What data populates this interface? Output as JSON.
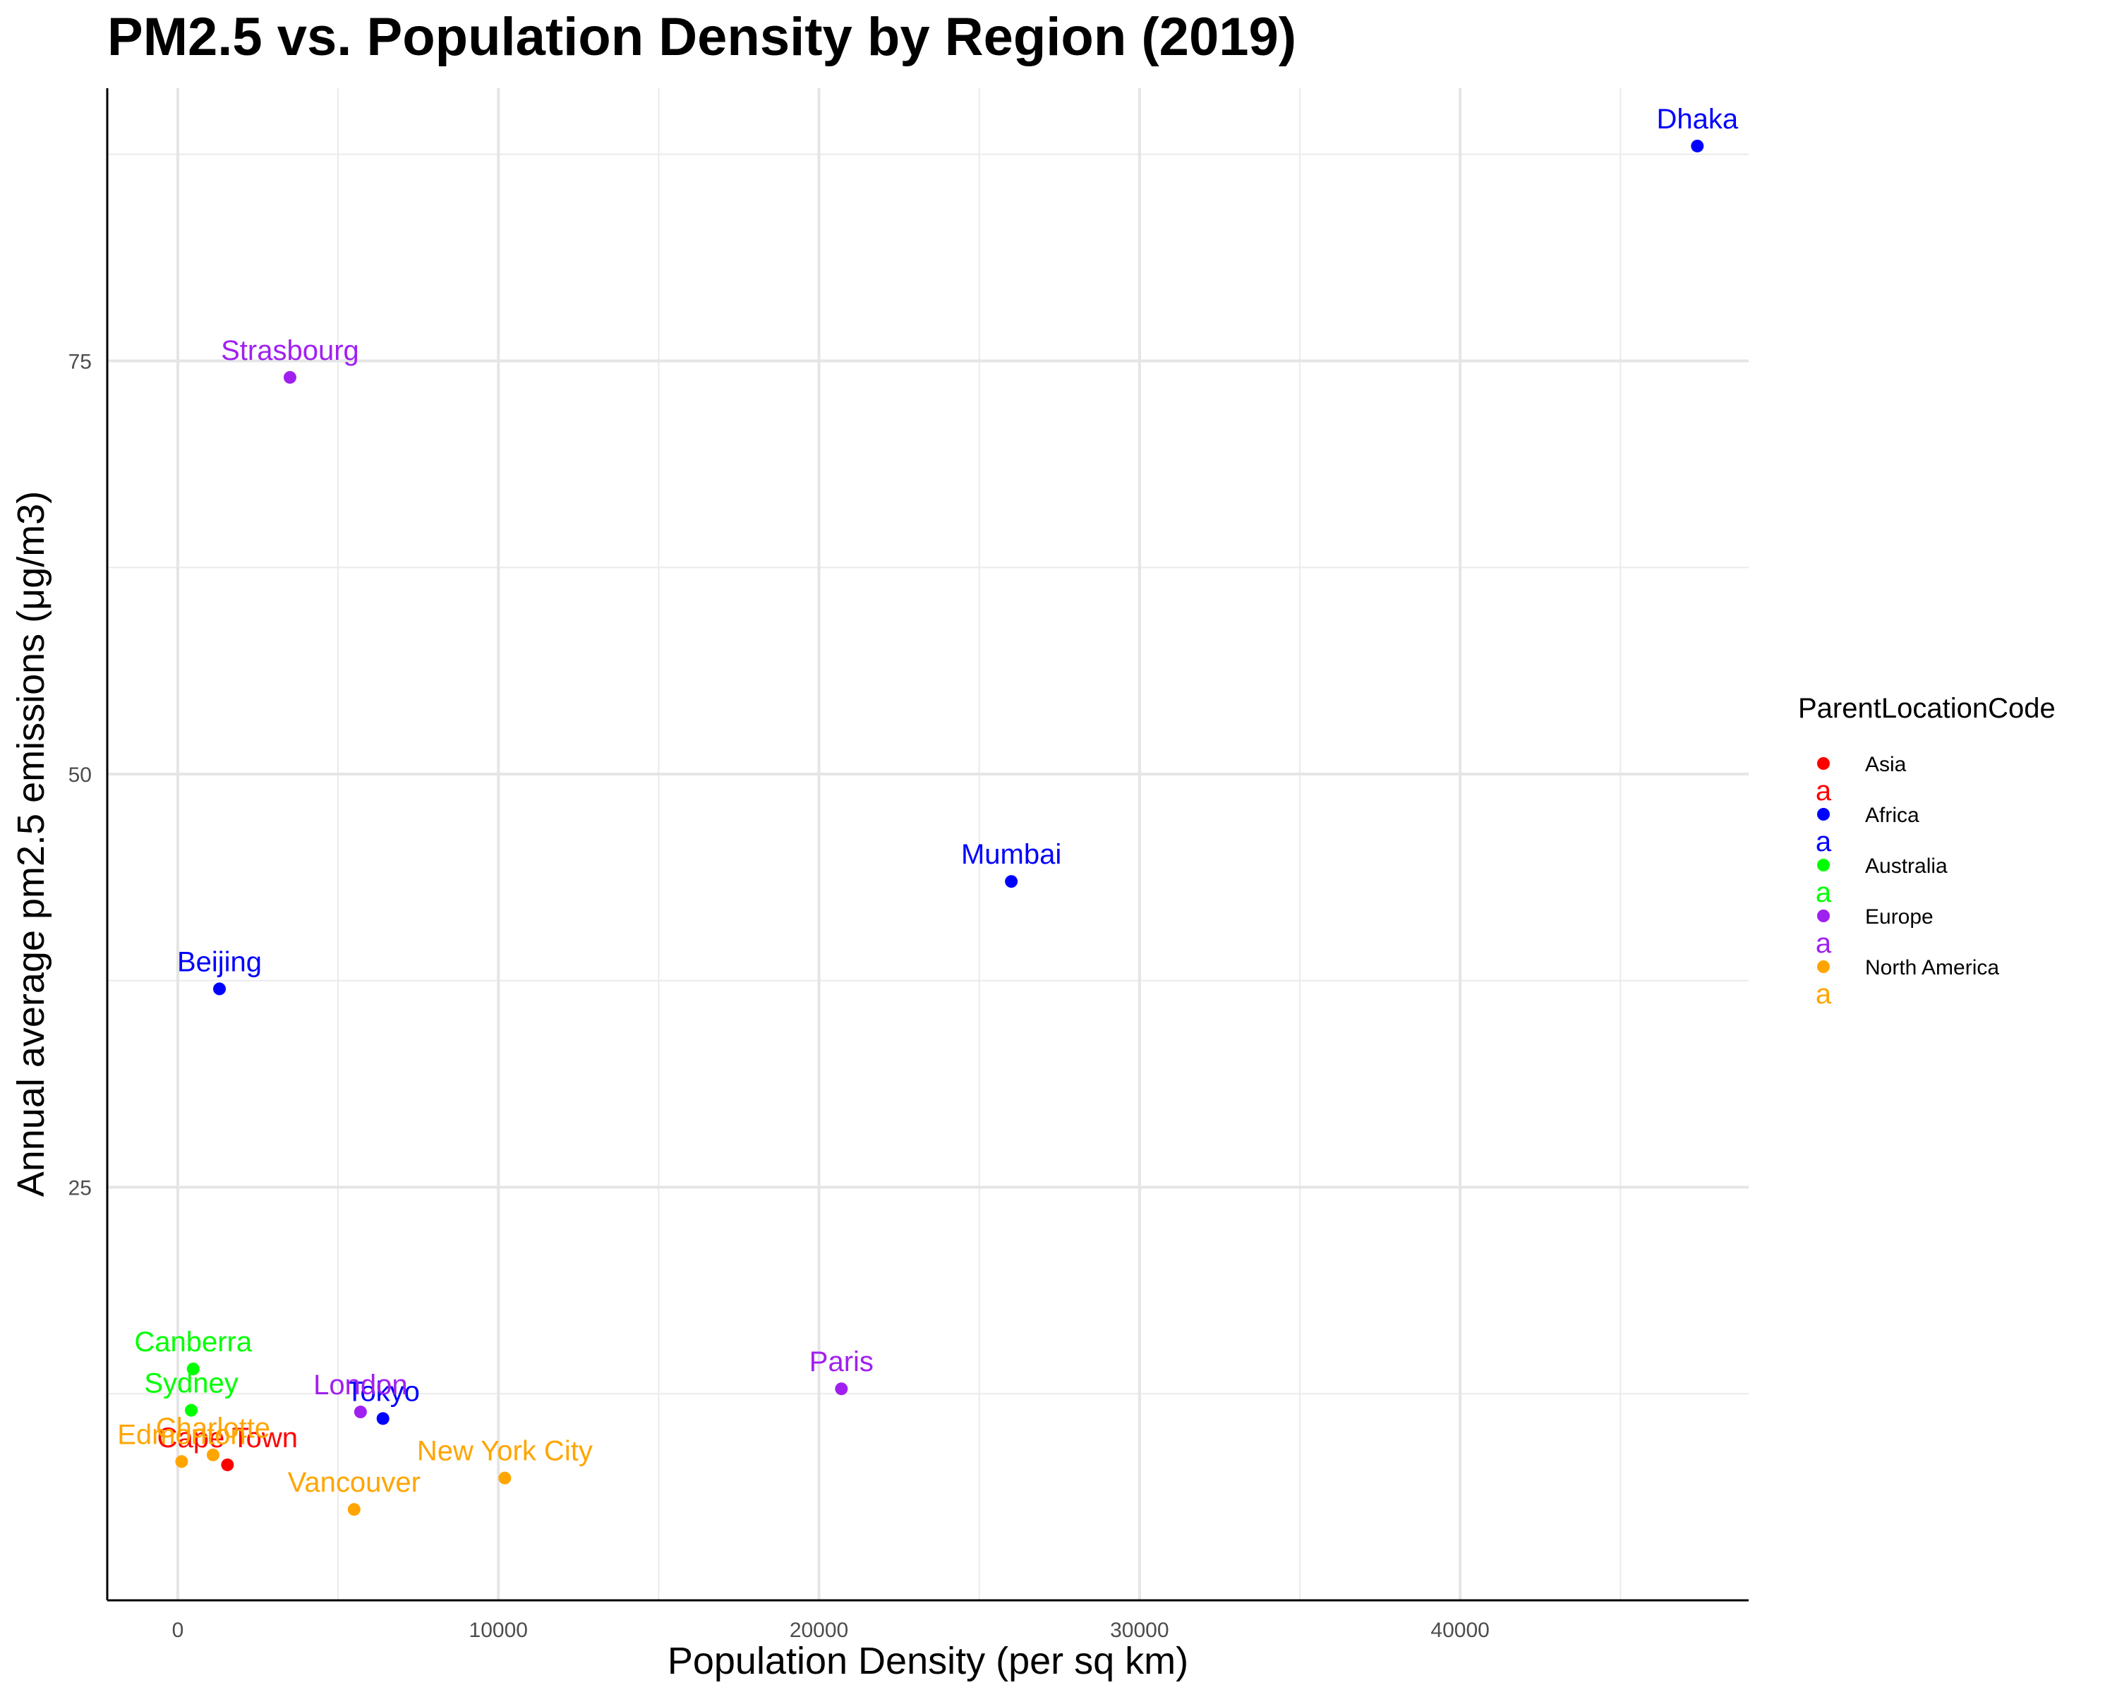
{
  "chart_data": {
    "type": "scatter",
    "title": "PM2.5 vs. Population Density by Region (2019)",
    "xlabel": "Population Density (per sq km)",
    "ylabel": "Annual average pm2.5 emissions (μg/m3)",
    "xlim": [
      -2200,
      49000
    ],
    "ylim": [
      0,
      91.5
    ],
    "x_ticks": [
      0,
      10000,
      20000,
      30000,
      40000
    ],
    "x_tick_labels": [
      "0",
      "10000",
      "20000",
      "30000",
      "40000"
    ],
    "y_ticks": [
      25,
      50,
      75
    ],
    "y_tick_labels": [
      "25",
      "50",
      "75"
    ],
    "grid": true,
    "legend": {
      "title": "ParentLocationCode",
      "position": "right",
      "entries": [
        {
          "name": "Asia",
          "color": "#ff0000"
        },
        {
          "name": "Africa",
          "color": "#0000ff"
        },
        {
          "name": "Australia",
          "color": "#00ff00"
        },
        {
          "name": "Europe",
          "color": "#a020f0"
        },
        {
          "name": "North America",
          "color": "#ffa500"
        }
      ],
      "key_glyph": "a"
    },
    "series": [
      {
        "name": "Asia",
        "color": "#ff0000",
        "points": [
          {
            "label": "Cape Town",
            "x": 1550,
            "y": 8.2
          }
        ]
      },
      {
        "name": "Africa",
        "color": "#0000ff",
        "points": [
          {
            "label": "Dhaka",
            "x": 47400,
            "y": 88
          },
          {
            "label": "Mumbai",
            "x": 26000,
            "y": 43.5
          },
          {
            "label": "Beijing",
            "x": 1300,
            "y": 37
          },
          {
            "label": "Tokyo",
            "x": 6400,
            "y": 11
          }
        ]
      },
      {
        "name": "Australia",
        "color": "#00ff00",
        "points": [
          {
            "label": "Canberra",
            "x": 480,
            "y": 14
          },
          {
            "label": "Sydney",
            "x": 420,
            "y": 11.5
          }
        ]
      },
      {
        "name": "Europe",
        "color": "#a020f0",
        "points": [
          {
            "label": "Strasbourg",
            "x": 3500,
            "y": 74
          },
          {
            "label": "Paris",
            "x": 20700,
            "y": 12.8
          },
          {
            "label": "London",
            "x": 5700,
            "y": 11.4
          }
        ]
      },
      {
        "name": "North America",
        "color": "#ffa500",
        "points": [
          {
            "label": "Edmonton",
            "x": 120,
            "y": 8.4
          },
          {
            "label": "Charlotte",
            "x": 1100,
            "y": 8.8
          },
          {
            "label": "New York City",
            "x": 10200,
            "y": 7.4
          },
          {
            "label": "Vancouver",
            "x": 5500,
            "y": 5.5
          }
        ]
      }
    ]
  }
}
